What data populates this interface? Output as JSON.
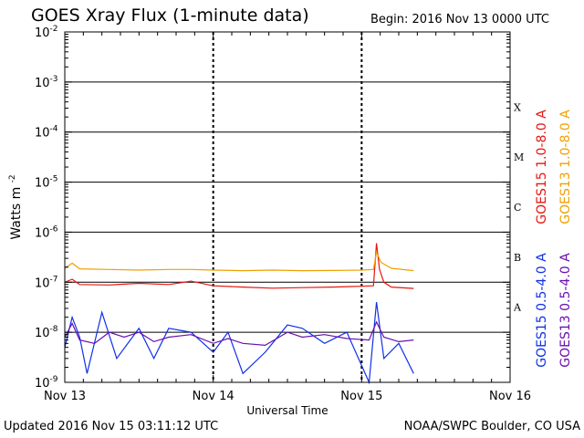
{
  "header": {
    "title": "GOES Xray Flux (1-minute data)",
    "begin": "Begin:  2016 Nov 13 0000 UTC"
  },
  "footer": {
    "updated": "Updated 2016 Nov 15 03:11:12 UTC",
    "credit": "NOAA/SWPC Boulder, CO USA"
  },
  "colors": {
    "goes15_long": "#e8150f",
    "goes13_long": "#f0a000",
    "goes15_short": "#1030e8",
    "goes13_short": "#6a10b0"
  },
  "chart_data": {
    "type": "line",
    "title": "GOES Xray Flux (1-minute data)",
    "xlabel": "Universal Time",
    "ylabel": "Watts m",
    "ylabel_sup": "-2",
    "y_scale": "log",
    "ylim": [
      1e-09,
      0.01
    ],
    "y_tick_base": "10",
    "y_tick_exponents": [
      "-2",
      "-3",
      "-4",
      "-5",
      "-6",
      "-7",
      "-8",
      "-9"
    ],
    "xlim_days": [
      0,
      3
    ],
    "x_tick_labels": [
      "Nov 13",
      "Nov 14",
      "Nov 15",
      "Nov 16"
    ],
    "flare_classes": [
      "X",
      "M",
      "C",
      "B",
      "A"
    ],
    "grid": "horizontal lines at each decade; dashed vertical lines at day boundaries",
    "legend_placement": "right, rotated",
    "series": [
      {
        "name": "GOES15 1.0-8.0 A",
        "key": "goes15_long",
        "points": [
          [
            0,
            1e-07
          ],
          [
            0.05,
            1.15e-07
          ],
          [
            0.1,
            9e-08
          ],
          [
            0.3,
            8.8e-08
          ],
          [
            0.5,
            9.5e-08
          ],
          [
            0.7,
            9e-08
          ],
          [
            0.85,
            1.05e-07
          ],
          [
            1.0,
            8.5e-08
          ],
          [
            1.2,
            8e-08
          ],
          [
            1.4,
            7.6e-08
          ],
          [
            1.6,
            7.8e-08
          ],
          [
            1.8,
            8e-08
          ],
          [
            2.0,
            8.3e-08
          ],
          [
            2.08,
            8.5e-08
          ],
          [
            2.1,
            6e-07
          ],
          [
            2.12,
            1.8e-07
          ],
          [
            2.15,
            1e-07
          ],
          [
            2.2,
            8e-08
          ],
          [
            2.35,
            7.5e-08
          ]
        ]
      },
      {
        "name": "GOES13 1.0-8.0 A",
        "key": "goes13_long",
        "points": [
          [
            0,
            1.9e-07
          ],
          [
            0.05,
            2.4e-07
          ],
          [
            0.1,
            1.85e-07
          ],
          [
            0.3,
            1.8e-07
          ],
          [
            0.5,
            1.75e-07
          ],
          [
            0.7,
            1.8e-07
          ],
          [
            0.85,
            1.8e-07
          ],
          [
            1.0,
            1.75e-07
          ],
          [
            1.2,
            1.7e-07
          ],
          [
            1.4,
            1.75e-07
          ],
          [
            1.6,
            1.7e-07
          ],
          [
            1.8,
            1.72e-07
          ],
          [
            2.0,
            1.75e-07
          ],
          [
            2.08,
            1.8e-07
          ],
          [
            2.1,
            4e-07
          ],
          [
            2.13,
            2.5e-07
          ],
          [
            2.2,
            1.9e-07
          ],
          [
            2.35,
            1.7e-07
          ]
        ]
      },
      {
        "name": "GOES15 0.5-4.0 A",
        "key": "goes15_short",
        "points": [
          [
            0,
            5e-09
          ],
          [
            0.05,
            2e-08
          ],
          [
            0.1,
            8e-09
          ],
          [
            0.15,
            1.5e-09
          ],
          [
            0.25,
            2.5e-08
          ],
          [
            0.35,
            3e-09
          ],
          [
            0.5,
            1.2e-08
          ],
          [
            0.6,
            3e-09
          ],
          [
            0.7,
            1.2e-08
          ],
          [
            0.85,
            1e-08
          ],
          [
            1.0,
            4e-09
          ],
          [
            1.1,
            1e-08
          ],
          [
            1.2,
            1.5e-09
          ],
          [
            1.35,
            4e-09
          ],
          [
            1.5,
            1.4e-08
          ],
          [
            1.6,
            1.2e-08
          ],
          [
            1.75,
            6e-09
          ],
          [
            1.9,
            1e-08
          ],
          [
            2.05,
            1e-09
          ],
          [
            2.1,
            4e-08
          ],
          [
            2.15,
            3e-09
          ],
          [
            2.25,
            6e-09
          ],
          [
            2.35,
            1.5e-09
          ]
        ]
      },
      {
        "name": "GOES13 0.5-4.0 A",
        "key": "goes13_short",
        "points": [
          [
            0,
            8e-09
          ],
          [
            0.05,
            1.5e-08
          ],
          [
            0.1,
            7e-09
          ],
          [
            0.2,
            6e-09
          ],
          [
            0.3,
            1e-08
          ],
          [
            0.4,
            8e-09
          ],
          [
            0.5,
            1e-08
          ],
          [
            0.6,
            6.5e-09
          ],
          [
            0.7,
            8e-09
          ],
          [
            0.85,
            9e-09
          ],
          [
            1.0,
            6e-09
          ],
          [
            1.1,
            7.5e-09
          ],
          [
            1.2,
            6e-09
          ],
          [
            1.35,
            5.5e-09
          ],
          [
            1.5,
            1e-08
          ],
          [
            1.6,
            8e-09
          ],
          [
            1.75,
            9e-09
          ],
          [
            1.9,
            7.5e-09
          ],
          [
            2.05,
            7e-09
          ],
          [
            2.1,
            1.6e-08
          ],
          [
            2.15,
            8e-09
          ],
          [
            2.25,
            6.5e-09
          ],
          [
            2.35,
            7e-09
          ]
        ]
      }
    ]
  }
}
